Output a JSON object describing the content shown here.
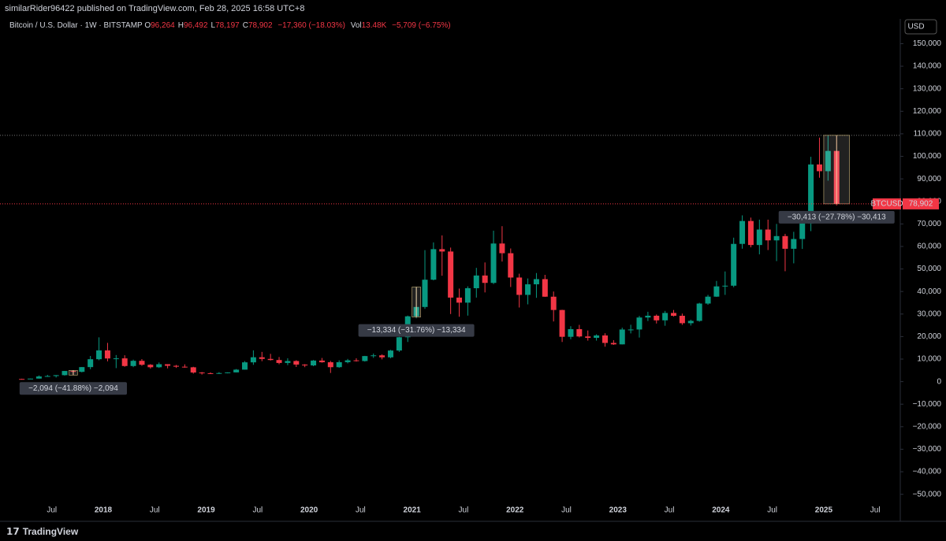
{
  "header": {
    "publisher": "similarRider96422 published on TradingView.com, Feb 28, 2025 16:58 UTC+8",
    "symbol": "Bitcoin / U.S. Dollar · 1W · BITSTAMP",
    "ohlc": [
      {
        "key": "O",
        "value": "96,264"
      },
      {
        "key": "H",
        "value": "96,492"
      },
      {
        "key": "L",
        "value": "78,197"
      },
      {
        "key": "C",
        "value": "78,902"
      }
    ],
    "change": "−17,360 (−18.03%)",
    "volume_key": "Vol",
    "volume": "13.48K",
    "volume_change": "−5,709 (−6.75%)"
  },
  "footer": {
    "brand": "TradingView"
  },
  "chart_data": {
    "type": "candlestick",
    "currency": "USD",
    "x": [
      "2017-03",
      "2017-04",
      "2017-05",
      "2017-06",
      "2017-07",
      "2017-08",
      "2017-09",
      "2017-10",
      "2017-11",
      "2017-12",
      "2018-01",
      "2018-02",
      "2018-03",
      "2018-04",
      "2018-05",
      "2018-06",
      "2018-07",
      "2018-08",
      "2018-09",
      "2018-10",
      "2018-11",
      "2018-12",
      "2019-01",
      "2019-02",
      "2019-03",
      "2019-04",
      "2019-05",
      "2019-06",
      "2019-07",
      "2019-08",
      "2019-09",
      "2019-10",
      "2019-11",
      "2019-12",
      "2020-01",
      "2020-02",
      "2020-03",
      "2020-04",
      "2020-05",
      "2020-06",
      "2020-07",
      "2020-08",
      "2020-09",
      "2020-10",
      "2020-11",
      "2020-12",
      "2021-01",
      "2021-02",
      "2021-03",
      "2021-04",
      "2021-05",
      "2021-06",
      "2021-07",
      "2021-08",
      "2021-09",
      "2021-10",
      "2021-11",
      "2021-12",
      "2022-01",
      "2022-02",
      "2022-03",
      "2022-04",
      "2022-05",
      "2022-06",
      "2022-07",
      "2022-08",
      "2022-09",
      "2022-10",
      "2022-11",
      "2022-12",
      "2023-01",
      "2023-02",
      "2023-03",
      "2023-04",
      "2023-05",
      "2023-06",
      "2023-07",
      "2023-08",
      "2023-09",
      "2023-10",
      "2023-11",
      "2023-12",
      "2024-01",
      "2024-02",
      "2024-03",
      "2024-04",
      "2024-05",
      "2024-06",
      "2024-07",
      "2024-08",
      "2024-09",
      "2024-10",
      "2024-11",
      "2024-12",
      "2025-01",
      "2025-02"
    ],
    "series": [
      {
        "name": "BTCUSD",
        "up_color": "#089981",
        "down_color": "#f23645",
        "values": [
          [
            1190,
            1300,
            890,
            1080
          ],
          [
            1080,
            1350,
            1080,
            1350
          ],
          [
            1350,
            2760,
            1350,
            2300
          ],
          [
            2300,
            3000,
            2100,
            2480
          ],
          [
            2480,
            2900,
            1830,
            2870
          ],
          [
            2870,
            4750,
            2670,
            4730
          ],
          [
            4730,
            5000,
            2970,
            4340
          ],
          [
            4340,
            6470,
            4110,
            6450
          ],
          [
            6450,
            11400,
            5500,
            9950
          ],
          [
            9950,
            19660,
            9500,
            13860
          ],
          [
            13860,
            17200,
            9000,
            10280
          ],
          [
            10280,
            11800,
            6000,
            10330
          ],
          [
            10330,
            11700,
            6600,
            6930
          ],
          [
            6930,
            9760,
            6430,
            9240
          ],
          [
            9240,
            10000,
            7030,
            7490
          ],
          [
            7490,
            7780,
            5780,
            6390
          ],
          [
            6390,
            8500,
            6070,
            7730
          ],
          [
            7730,
            7760,
            5880,
            7030
          ],
          [
            7030,
            7410,
            6100,
            6630
          ],
          [
            6630,
            7680,
            6200,
            6370
          ],
          [
            6370,
            6600,
            3550,
            4040
          ],
          [
            4040,
            4270,
            3130,
            3740
          ],
          [
            3740,
            4110,
            3350,
            3460
          ],
          [
            3460,
            4210,
            3400,
            3810
          ],
          [
            3810,
            4120,
            3670,
            4100
          ],
          [
            4100,
            5600,
            4090,
            5320
          ],
          [
            5320,
            9100,
            5320,
            8560
          ],
          [
            8560,
            13880,
            7460,
            10820
          ],
          [
            10820,
            13200,
            9070,
            10080
          ],
          [
            10080,
            12330,
            9360,
            9590
          ],
          [
            9590,
            10930,
            7710,
            8290
          ],
          [
            8290,
            10370,
            7300,
            9150
          ],
          [
            9150,
            9500,
            6500,
            7570
          ],
          [
            7570,
            7750,
            6430,
            7190
          ],
          [
            7190,
            9600,
            6850,
            9350
          ],
          [
            9350,
            10500,
            8400,
            8600
          ],
          [
            8600,
            9200,
            3850,
            6420
          ],
          [
            6420,
            9460,
            6150,
            8630
          ],
          [
            8630,
            10080,
            8100,
            9450
          ],
          [
            9450,
            10380,
            8900,
            9140
          ],
          [
            9140,
            11440,
            8900,
            11350
          ],
          [
            11350,
            12470,
            10550,
            11660
          ],
          [
            11660,
            12090,
            9880,
            10790
          ],
          [
            10790,
            14100,
            10380,
            13800
          ],
          [
            13800,
            19900,
            13200,
            19700
          ],
          [
            19700,
            29300,
            17600,
            28990
          ],
          [
            28990,
            42000,
            28100,
            33140
          ],
          [
            33140,
            58350,
            32300,
            45240
          ],
          [
            45240,
            61800,
            44950,
            58800
          ],
          [
            58800,
            64900,
            47000,
            57750
          ],
          [
            57750,
            59500,
            30000,
            37300
          ],
          [
            37300,
            41300,
            28800,
            35050
          ],
          [
            35050,
            42300,
            29300,
            41460
          ],
          [
            41460,
            50500,
            37300,
            47100
          ],
          [
            47100,
            52900,
            39600,
            43820
          ],
          [
            43820,
            67000,
            43300,
            61300
          ],
          [
            61300,
            69000,
            53300,
            57000
          ],
          [
            57000,
            59100,
            42000,
            46200
          ],
          [
            46200,
            47900,
            32900,
            38500
          ],
          [
            38500,
            45800,
            34300,
            43200
          ],
          [
            43200,
            48200,
            37200,
            45500
          ],
          [
            45500,
            47400,
            37600,
            37700
          ],
          [
            37700,
            40000,
            26700,
            31800
          ],
          [
            31800,
            31900,
            17600,
            19900
          ],
          [
            19900,
            24600,
            18800,
            23300
          ],
          [
            23300,
            25200,
            19600,
            20050
          ],
          [
            20050,
            22700,
            18200,
            19430
          ],
          [
            19430,
            21000,
            18200,
            20500
          ],
          [
            20500,
            21480,
            15500,
            17170
          ],
          [
            17170,
            18400,
            16300,
            16540
          ],
          [
            16540,
            23950,
            16500,
            23130
          ],
          [
            23130,
            25250,
            21400,
            23140
          ],
          [
            23140,
            29200,
            19550,
            28460
          ],
          [
            28460,
            31000,
            26900,
            29250
          ],
          [
            29250,
            29800,
            25800,
            27200
          ],
          [
            27200,
            31400,
            24800,
            30480
          ],
          [
            30480,
            31800,
            28900,
            29230
          ],
          [
            29230,
            30200,
            25200,
            25940
          ],
          [
            25940,
            27500,
            24900,
            26970
          ],
          [
            26970,
            35000,
            26600,
            34650
          ],
          [
            34650,
            38500,
            34100,
            37720
          ],
          [
            37720,
            44700,
            37600,
            42280
          ],
          [
            42280,
            48900,
            38500,
            42580
          ],
          [
            42580,
            63900,
            41900,
            61130
          ],
          [
            61130,
            73800,
            59000,
            71300
          ],
          [
            71300,
            72800,
            59600,
            60640
          ],
          [
            60640,
            71900,
            56500,
            67500
          ],
          [
            67500,
            71900,
            58400,
            62700
          ],
          [
            62700,
            70000,
            53500,
            64600
          ],
          [
            64600,
            65600,
            49000,
            58970
          ],
          [
            58970,
            66500,
            52500,
            63300
          ],
          [
            63300,
            73600,
            58900,
            70200
          ],
          [
            70200,
            99800,
            66800,
            96400
          ],
          [
            96400,
            108300,
            90500,
            93400
          ],
          [
            93400,
            109300,
            89200,
            102400
          ],
          [
            102400,
            102500,
            78197,
            78902
          ]
        ]
      }
    ],
    "last_price": {
      "value": 78902,
      "label": "78,902"
    },
    "ylim": [
      -62000,
      161000
    ],
    "yticks": [
      {
        "value": -50000,
        "label": "−50,000"
      },
      {
        "value": -40000,
        "label": "−40,000"
      },
      {
        "value": -30000,
        "label": "−30,000"
      },
      {
        "value": -20000,
        "label": "−20,000"
      },
      {
        "value": -10000,
        "label": "−10,000"
      },
      0,
      {
        "value": 10000,
        "label": "10,000"
      },
      {
        "value": 20000,
        "label": "20,000"
      },
      {
        "value": 30000,
        "label": "30,000"
      },
      {
        "value": 40000,
        "label": "40,000"
      },
      {
        "value": 50000,
        "label": "50,000"
      },
      {
        "value": 60000,
        "label": "60,000"
      },
      {
        "value": 70000,
        "label": "70,000"
      },
      {
        "value": 80000,
        "label": "80,000"
      },
      {
        "value": 90000,
        "label": "90,000"
      },
      {
        "value": 100000,
        "label": "100,000"
      },
      {
        "value": 110000,
        "label": "110,000"
      },
      {
        "value": 120000,
        "label": "120,000"
      },
      {
        "value": 130000,
        "label": "130,000"
      },
      {
        "value": 140000,
        "label": "140,000"
      },
      {
        "value": 150000,
        "label": "150,000"
      }
    ],
    "xticks": [
      {
        "value": "2017-07",
        "label": "Jul"
      },
      {
        "value": "2018-01",
        "label": "2018"
      },
      {
        "value": "2018-07",
        "label": "Jul"
      },
      {
        "value": "2019-01",
        "label": "2019"
      },
      {
        "value": "2019-07",
        "label": "Jul"
      },
      {
        "value": "2020-01",
        "label": "2020"
      },
      {
        "value": "2020-07",
        "label": "Jul"
      },
      {
        "value": "2021-01",
        "label": "2021"
      },
      {
        "value": "2021-07",
        "label": "Jul"
      },
      {
        "value": "2022-01",
        "label": "2022"
      },
      {
        "value": "2022-07",
        "label": "Jul"
      },
      {
        "value": "2023-01",
        "label": "2023"
      },
      {
        "value": "2023-07",
        "label": "Jul"
      },
      {
        "value": "2024-01",
        "label": "2024"
      },
      {
        "value": "2024-07",
        "label": "Jul"
      },
      {
        "value": "2025-01",
        "label": "2025"
      },
      {
        "value": "2025-07",
        "label": "Jul"
      }
    ],
    "annotations": [
      {
        "label": "−2,094 (−41.88%) −2,094",
        "start": "2017-09",
        "end": "2017-10",
        "from": 5000,
        "to": 2906
      },
      {
        "label": "−13,334 (−31.76%) −13,334",
        "start": "2021-01",
        "end": "2021-02",
        "from": 42000,
        "to": 28666
      },
      {
        "label": "−30,413 (−27.78%) −30,413",
        "start": "2025-01",
        "end": "2025-04",
        "from": 109315,
        "to": 78902
      }
    ]
  }
}
